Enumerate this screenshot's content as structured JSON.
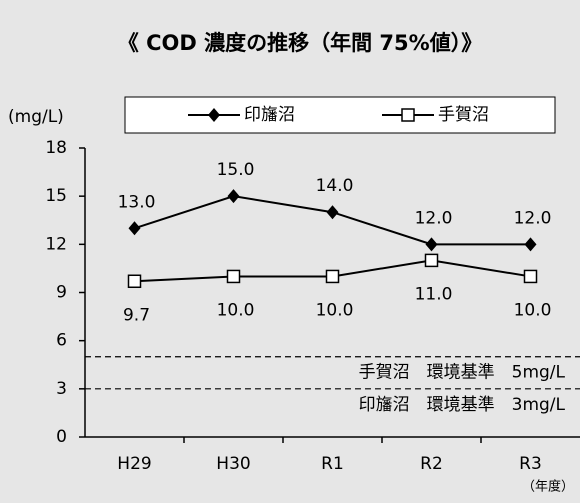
{
  "chart_data": {
    "type": "line",
    "title": "《 COD 濃度の推移（年間 75%値）》",
    "y_axis_label": "(mg/L)",
    "x_axis_label": "（年度）",
    "categories": [
      "H29",
      "H30",
      "R1",
      "R2",
      "R3"
    ],
    "series": [
      {
        "name": "印旛沼",
        "color": "#000000",
        "marker": "diamond",
        "values": [
          13,
          15,
          14,
          12,
          12
        ],
        "value_labels": [
          "13.0",
          "15.0",
          "14.0",
          "12.0",
          "12.0"
        ]
      },
      {
        "name": "手賀沼",
        "color": "#000000",
        "marker": "square",
        "values": [
          9.7,
          10,
          10,
          11,
          10
        ],
        "value_labels": [
          "9.7",
          "10.0",
          "10.0",
          "11.0",
          "10.0"
        ]
      }
    ],
    "reference_lines": [
      {
        "value": 5,
        "label": "手賀沼　環境基準　5mg/L"
      },
      {
        "value": 3,
        "label": "印旛沼　環境基準　3mg/L"
      }
    ],
    "ylim": [
      0,
      18
    ],
    "yticks": [
      0,
      3,
      6,
      9,
      12,
      15,
      18
    ],
    "legend": "top"
  }
}
